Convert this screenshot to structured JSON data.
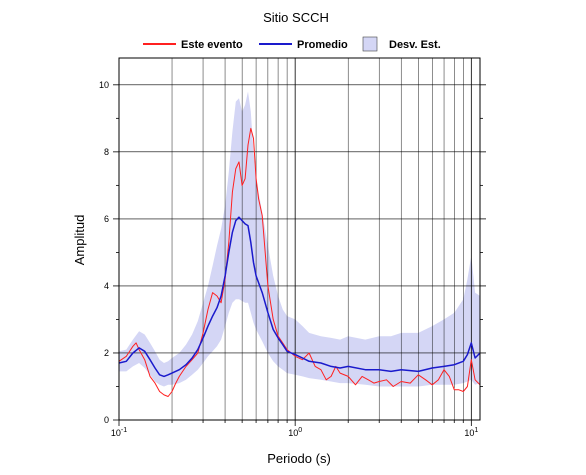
{
  "chart_data": {
    "type": "line",
    "title": "Sitio SCCH",
    "xlabel": "Periodo (s)",
    "ylabel": "Amplitud",
    "x_scale": "log",
    "xlim": [
      0.1,
      11.2
    ],
    "ylim": [
      0,
      10.8
    ],
    "grid": true,
    "legend_position": "top",
    "x_ticks": [
      {
        "value": 0.1,
        "base": "10",
        "exp": "-1"
      },
      {
        "value": 1,
        "base": "10",
        "exp": "0"
      },
      {
        "value": 10,
        "base": "10",
        "exp": "1"
      }
    ],
    "y_ticks": [
      0,
      2,
      4,
      6,
      8,
      10
    ],
    "legend": [
      {
        "label": "Este evento",
        "kind": "line",
        "color": "#ff2020"
      },
      {
        "label": "Promedio",
        "kind": "line",
        "color": "#1a1acc"
      },
      {
        "label": "Desv. Est.",
        "kind": "band",
        "color": "#d4d6f5"
      }
    ],
    "series": [
      {
        "name": "Este evento",
        "color": "#ff2020",
        "x": [
          0.1,
          0.11,
          0.12,
          0.125,
          0.13,
          0.14,
          0.15,
          0.16,
          0.17,
          0.18,
          0.19,
          0.2,
          0.21,
          0.22,
          0.24,
          0.26,
          0.28,
          0.3,
          0.32,
          0.34,
          0.36,
          0.38,
          0.4,
          0.42,
          0.44,
          0.46,
          0.48,
          0.5,
          0.52,
          0.54,
          0.56,
          0.58,
          0.6,
          0.62,
          0.65,
          0.7,
          0.75,
          0.8,
          0.85,
          0.9,
          1.0,
          1.1,
          1.2,
          1.3,
          1.4,
          1.5,
          1.6,
          1.7,
          1.8,
          2.0,
          2.2,
          2.4,
          2.6,
          2.8,
          3.0,
          3.3,
          3.6,
          4.0,
          4.5,
          5.0,
          5.5,
          6.0,
          6.5,
          7.0,
          7.5,
          8.0,
          8.5,
          9.0,
          9.5,
          10.0,
          10.5,
          11.2
        ],
        "y": [
          1.75,
          1.9,
          2.2,
          2.3,
          2.1,
          1.8,
          1.3,
          1.1,
          0.85,
          0.75,
          0.7,
          0.85,
          1.1,
          1.3,
          1.6,
          1.8,
          2.0,
          2.6,
          3.3,
          3.8,
          3.7,
          3.5,
          4.2,
          5.3,
          6.8,
          7.5,
          7.7,
          7.0,
          7.2,
          8.2,
          8.7,
          8.4,
          7.2,
          6.6,
          6.1,
          4.0,
          3.0,
          2.5,
          2.3,
          2.1,
          1.9,
          1.8,
          2.0,
          1.6,
          1.5,
          1.2,
          1.3,
          1.6,
          1.4,
          1.3,
          1.05,
          1.3,
          1.2,
          1.1,
          1.15,
          1.2,
          1.0,
          1.15,
          1.1,
          1.35,
          1.2,
          1.05,
          1.2,
          1.5,
          1.3,
          0.9,
          0.9,
          0.85,
          1.0,
          1.8,
          1.2,
          1.05
        ]
      },
      {
        "name": "Promedio",
        "color": "#1a1acc",
        "x": [
          0.1,
          0.11,
          0.12,
          0.13,
          0.14,
          0.15,
          0.16,
          0.17,
          0.18,
          0.19,
          0.2,
          0.22,
          0.24,
          0.26,
          0.28,
          0.3,
          0.32,
          0.34,
          0.36,
          0.38,
          0.4,
          0.42,
          0.44,
          0.46,
          0.48,
          0.5,
          0.52,
          0.54,
          0.56,
          0.58,
          0.6,
          0.65,
          0.7,
          0.75,
          0.8,
          0.85,
          0.9,
          1.0,
          1.1,
          1.2,
          1.4,
          1.6,
          1.8,
          2.0,
          2.5,
          3.0,
          3.5,
          4.0,
          5.0,
          6.0,
          7.0,
          8.0,
          9.0,
          9.5,
          10.0,
          10.5,
          11.2
        ],
        "y": [
          1.7,
          1.75,
          2.0,
          2.15,
          2.05,
          1.8,
          1.55,
          1.35,
          1.3,
          1.35,
          1.4,
          1.5,
          1.65,
          1.85,
          2.1,
          2.45,
          2.8,
          3.1,
          3.35,
          3.7,
          4.3,
          5.0,
          5.6,
          5.95,
          6.05,
          5.95,
          5.85,
          5.8,
          5.3,
          4.7,
          4.3,
          3.8,
          3.2,
          2.7,
          2.45,
          2.25,
          2.05,
          1.95,
          1.85,
          1.75,
          1.7,
          1.6,
          1.55,
          1.6,
          1.5,
          1.5,
          1.45,
          1.5,
          1.45,
          1.55,
          1.6,
          1.65,
          1.75,
          1.95,
          2.3,
          1.85,
          2.0
        ]
      }
    ],
    "band": {
      "name": "Desv. Est.",
      "color": "#d4d6f5",
      "x": [
        0.1,
        0.11,
        0.12,
        0.13,
        0.14,
        0.15,
        0.16,
        0.17,
        0.18,
        0.19,
        0.2,
        0.22,
        0.24,
        0.26,
        0.28,
        0.3,
        0.32,
        0.34,
        0.36,
        0.38,
        0.4,
        0.42,
        0.44,
        0.46,
        0.48,
        0.5,
        0.52,
        0.54,
        0.56,
        0.58,
        0.6,
        0.65,
        0.7,
        0.75,
        0.8,
        0.85,
        0.9,
        1.0,
        1.1,
        1.2,
        1.4,
        1.6,
        1.8,
        2.0,
        2.5,
        3.0,
        3.5,
        4.0,
        5.0,
        6.0,
        7.0,
        8.0,
        9.0,
        9.5,
        10.0,
        10.5,
        11.2
      ],
      "lower": [
        1.45,
        1.45,
        1.6,
        1.7,
        1.55,
        1.35,
        1.15,
        1.05,
        1.0,
        1.05,
        1.05,
        1.1,
        1.2,
        1.35,
        1.5,
        1.7,
        1.9,
        2.05,
        2.2,
        2.4,
        2.8,
        3.2,
        3.5,
        3.6,
        3.6,
        3.55,
        3.5,
        3.5,
        3.2,
        2.9,
        2.7,
        2.35,
        2.0,
        1.75,
        1.6,
        1.5,
        1.4,
        1.35,
        1.3,
        1.25,
        1.2,
        1.15,
        1.1,
        1.1,
        1.05,
        1.0,
        1.0,
        1.0,
        1.0,
        1.05,
        1.05,
        1.05,
        1.1,
        1.15,
        1.2,
        1.05,
        1.1
      ],
      "upper": [
        2.05,
        2.1,
        2.4,
        2.65,
        2.55,
        2.3,
        2.05,
        1.8,
        1.7,
        1.75,
        1.85,
        2.0,
        2.25,
        2.55,
        2.95,
        3.5,
        4.0,
        4.6,
        5.2,
        5.7,
        6.4,
        7.4,
        8.6,
        9.5,
        9.6,
        9.2,
        9.4,
        9.8,
        9.2,
        8.0,
        7.2,
        6.2,
        5.2,
        4.3,
        3.7,
        3.3,
        3.1,
        3.0,
        2.8,
        2.6,
        2.5,
        2.45,
        2.4,
        2.5,
        2.4,
        2.5,
        2.5,
        2.6,
        2.6,
        2.8,
        3.0,
        3.2,
        3.6,
        4.2,
        4.9,
        3.8,
        3.7
      ]
    }
  }
}
